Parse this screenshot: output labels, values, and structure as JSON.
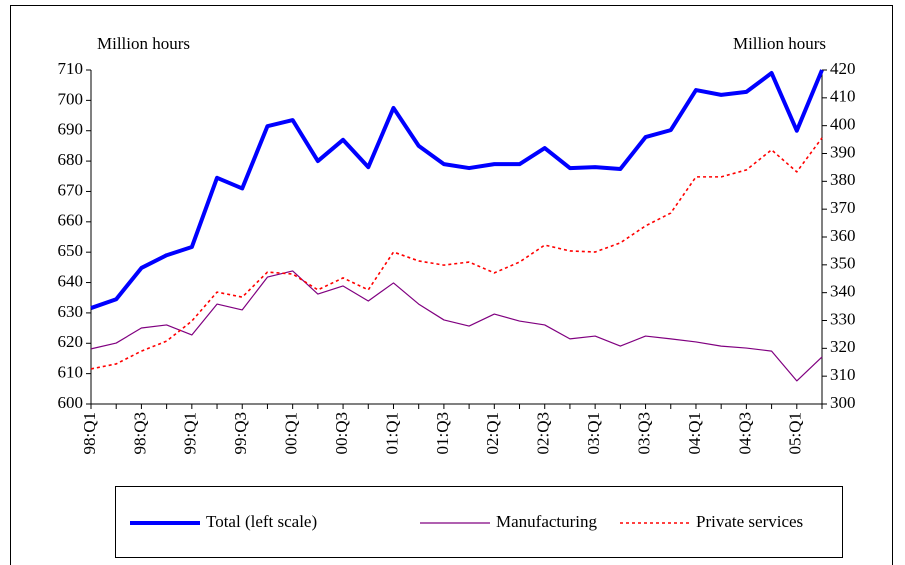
{
  "chart_data": {
    "type": "line",
    "y_label": "Million hours",
    "y2_label": "Million hours",
    "categories": [
      "98:Q1",
      null,
      "98:Q3",
      null,
      "99:Q1",
      null,
      "99:Q3",
      null,
      "00:Q1",
      null,
      "00:Q3",
      null,
      "01:Q1",
      null,
      "01:Q3",
      null,
      "02:Q1",
      null,
      "02:Q3",
      null,
      "03:Q1",
      null,
      "03:Q3",
      null,
      "04:Q1",
      null,
      "04:Q3",
      null,
      "05:Q1",
      null
    ],
    "series": [
      {
        "name": "Total (left scale)",
        "color": "#0000ff",
        "width": 4,
        "dash": "none",
        "values": [
          631.6,
          634.5,
          644.8,
          649,
          651.7,
          674.5,
          671,
          691.5,
          693.5,
          680,
          687,
          678,
          697.5,
          685,
          679,
          677.7,
          679,
          679,
          684.3,
          677.7,
          678,
          677.4,
          687.9,
          690.2,
          703.4,
          701.8,
          702.8,
          709,
          690,
          710
        ]
      },
      {
        "name": "Manufacturing",
        "color": "#800080",
        "width": 1.2,
        "dash": "none",
        "axis": "y2",
        "values": [
          319.8,
          321.9,
          327.3,
          328.4,
          324.8,
          335.9,
          333.8,
          345.6,
          347.8,
          339.5,
          342.4,
          337,
          343.5,
          335.9,
          330.2,
          328,
          332.3,
          329.8,
          328.4,
          323.4,
          324.4,
          320.8,
          324.4,
          323.4,
          322.3,
          320.8,
          320.1,
          319,
          308.3,
          316.9
        ]
      },
      {
        "name": "Private services",
        "color": "#ff0000",
        "width": 1.6,
        "dash": "3,3",
        "axis": "y2",
        "values": [
          312.6,
          314.4,
          319,
          322.6,
          329.8,
          340.2,
          338.4,
          347.4,
          346.7,
          341,
          345.3,
          341,
          354.6,
          351.4,
          349.9,
          351,
          347.1,
          351,
          357.1,
          355,
          354.6,
          357.9,
          364,
          368.6,
          381.6,
          381.6,
          384.1,
          391.3,
          383.4,
          395.6
        ]
      }
    ],
    "ylim": [
      600,
      710
    ],
    "yticks": [
      600,
      610,
      620,
      630,
      640,
      650,
      660,
      670,
      680,
      690,
      700,
      710
    ],
    "y2lim": [
      300,
      420
    ],
    "y2ticks": [
      300,
      310,
      320,
      330,
      340,
      350,
      360,
      370,
      380,
      390,
      400,
      410,
      420
    ],
    "grid": false,
    "legend": "bottom"
  }
}
